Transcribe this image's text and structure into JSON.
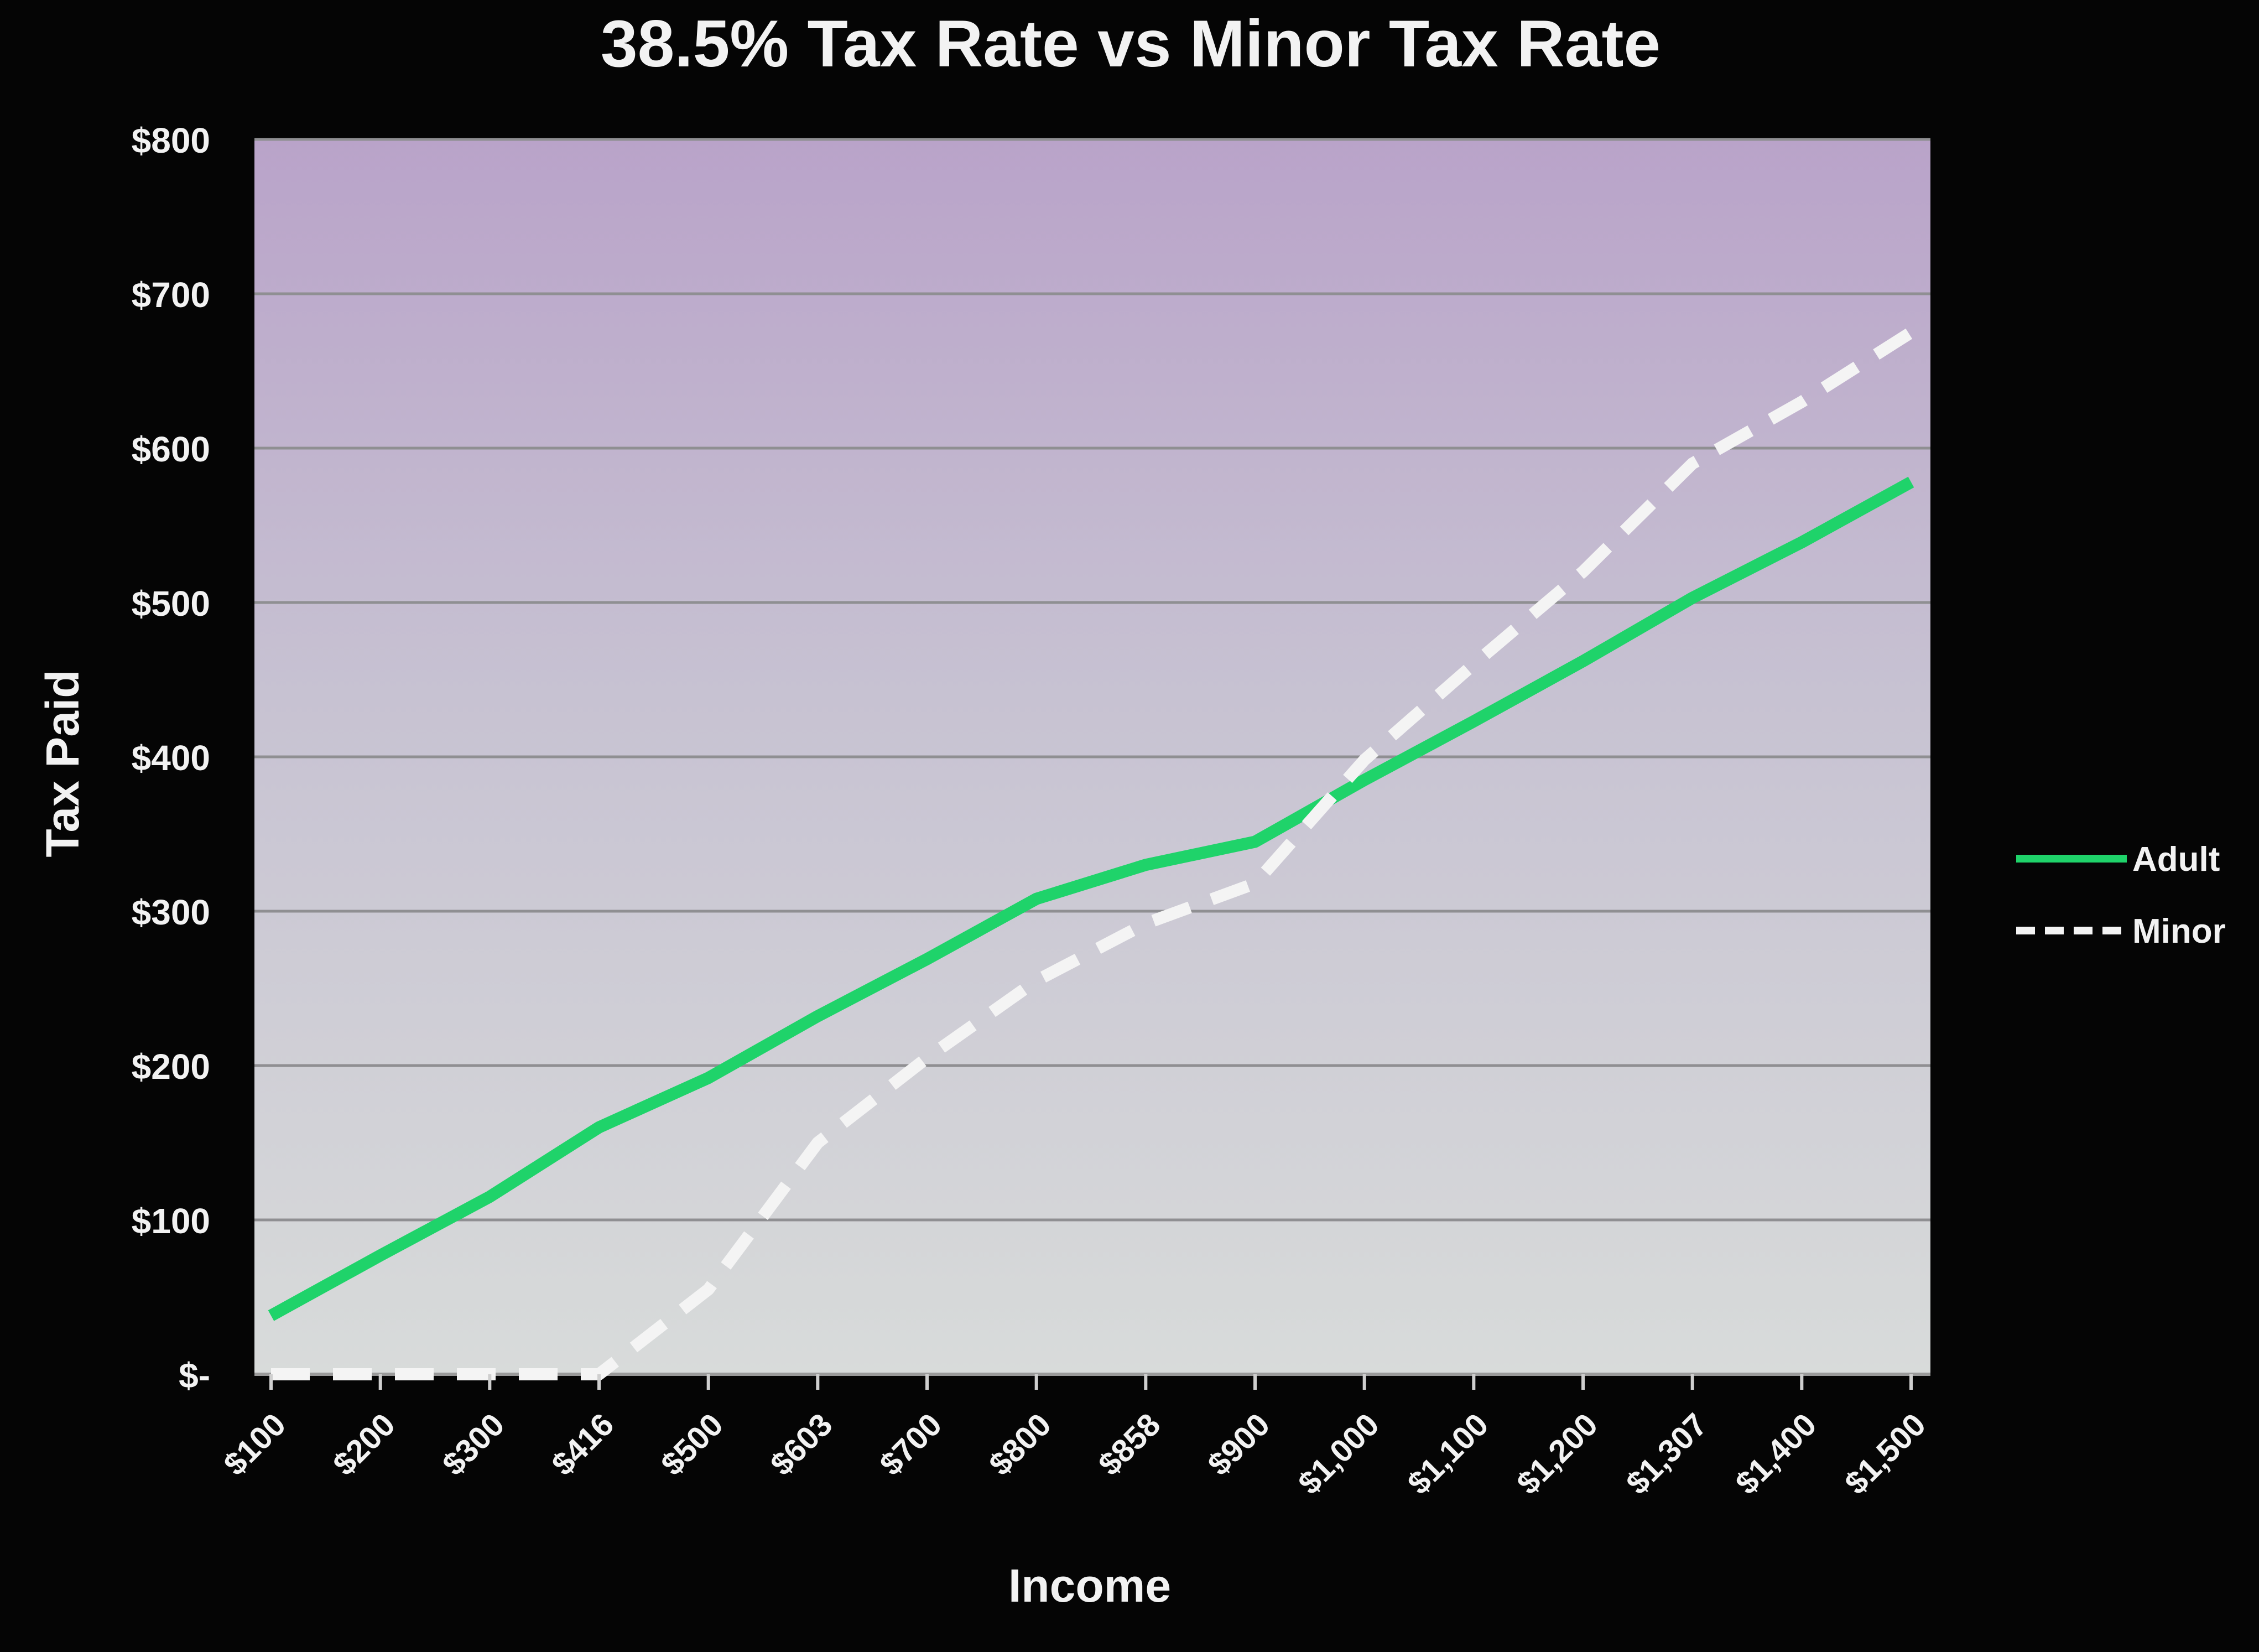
{
  "chart_data": {
    "type": "line",
    "title": "38.5% Tax Rate vs Minor Tax Rate",
    "xlabel": "Income",
    "ylabel": "Tax Paid",
    "categories": [
      "$100",
      "$200",
      "$300",
      "$416",
      "$500",
      "$603",
      "$700",
      "$800",
      "$858",
      "$900",
      "$1,000",
      "$1,100",
      "$1,200",
      "$1,307",
      "$1,400",
      "$1,500"
    ],
    "y_ticks": [
      0,
      100,
      200,
      300,
      400,
      500,
      600,
      700,
      800
    ],
    "y_tick_labels": [
      "$-",
      "$100",
      "$200",
      "$300",
      "$400",
      "$500",
      "$600",
      "$700",
      "$800"
    ],
    "ylim": [
      0,
      800
    ],
    "grid": true,
    "legend_position": "right",
    "series": [
      {
        "name": "Adult",
        "color": "#1fd36a",
        "style": "solid",
        "values": [
          38,
          77,
          115,
          160,
          192,
          232,
          269,
          308,
          330,
          345,
          385,
          423,
          462,
          503,
          539,
          578
        ]
      },
      {
        "name": "Minor",
        "color": "#f4f4f4",
        "style": "dashed",
        "values": [
          0,
          0,
          0,
          0,
          55,
          150,
          205,
          255,
          292,
          318,
          398,
          460,
          520,
          590,
          630,
          675
        ]
      }
    ],
    "colors": {
      "background": "#050505",
      "plot_top": "#b8a4c8",
      "plot_bottom": "#d6d9d8",
      "text": "#f2f2f2",
      "gridline": "#8f8f92"
    }
  }
}
